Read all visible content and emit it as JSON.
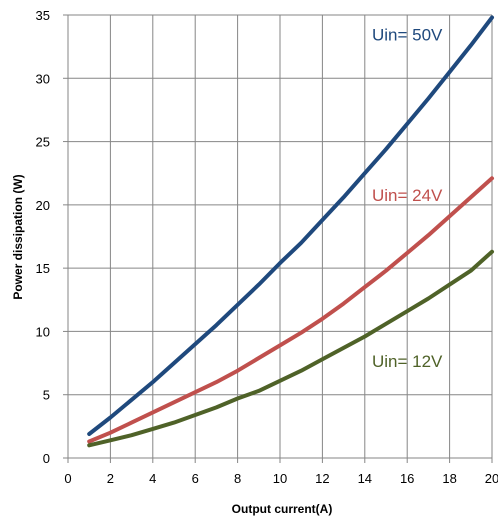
{
  "chart_data": {
    "type": "line",
    "title": "",
    "xlabel": "Output current(A)",
    "ylabel": "Power dissipation (W)",
    "xlim": [
      0,
      20
    ],
    "ylim": [
      0,
      35
    ],
    "xticks": [
      0,
      2,
      4,
      6,
      8,
      10,
      12,
      14,
      16,
      18,
      20
    ],
    "yticks": [
      0,
      5,
      10,
      15,
      20,
      25,
      30,
      35
    ],
    "grid": true,
    "x": [
      1,
      2,
      3,
      4,
      5,
      6,
      7,
      8,
      9,
      10,
      11,
      12,
      13,
      14,
      15,
      16,
      17,
      18,
      19,
      20
    ],
    "series": [
      {
        "name": "Uin= 50V",
        "color": "#1f497d",
        "values": [
          1.9,
          3.2,
          4.6,
          6.0,
          7.5,
          9.0,
          10.5,
          12.1,
          13.7,
          15.4,
          17.0,
          18.8,
          20.6,
          22.5,
          24.4,
          26.4,
          28.4,
          30.5,
          32.6,
          34.8
        ]
      },
      {
        "name": "Uin= 24V",
        "color": "#c0504d",
        "values": [
          1.3,
          2.0,
          2.8,
          3.6,
          4.4,
          5.2,
          6.0,
          6.9,
          7.9,
          8.9,
          9.9,
          11.0,
          12.2,
          13.5,
          14.8,
          16.2,
          17.6,
          19.1,
          20.6,
          22.1
        ]
      },
      {
        "name": "Uin= 12V",
        "color": "#4f6228",
        "values": [
          1.0,
          1.4,
          1.8,
          2.3,
          2.8,
          3.4,
          4.0,
          4.7,
          5.3,
          6.1,
          6.9,
          7.8,
          8.7,
          9.6,
          10.6,
          11.6,
          12.6,
          13.7,
          14.8,
          16.3
        ]
      }
    ],
    "labels": [
      {
        "text": "Uin= 50V",
        "color": "#1f497d",
        "x": 16,
        "y": 33
      },
      {
        "text": "Uin= 24V",
        "color": "#c0504d",
        "x": 16,
        "y": 20.3
      },
      {
        "text": "Uin= 12V",
        "color": "#4f6228",
        "x": 16,
        "y": 7.2
      }
    ]
  }
}
